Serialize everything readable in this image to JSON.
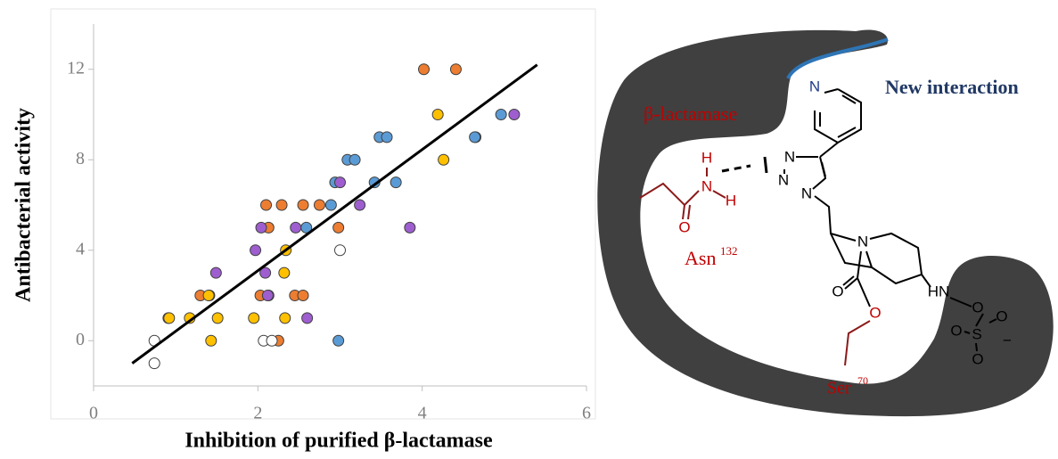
{
  "chart_data": {
    "type": "scatter",
    "xlabel": "Inhibition of purified β-lactamase",
    "ylabel": "Antibacterial activity",
    "xlim": [
      0,
      6
    ],
    "ylim": [
      -2,
      14
    ],
    "xticks": [
      0,
      2,
      4,
      6
    ],
    "yticks": [
      0,
      4,
      8,
      12
    ],
    "series": [
      {
        "color": "#ed7d31",
        "x": [
          4.02,
          4.41,
          2.1,
          2.29,
          2.55,
          2.75,
          2.13,
          2.98,
          1.3,
          1.41,
          2.03,
          2.45,
          2.55,
          0.91,
          2.25
        ],
        "values": [
          12,
          12,
          6,
          6,
          6,
          6,
          5,
          5,
          2,
          2,
          2,
          2,
          2,
          1,
          0
        ]
      },
      {
        "color": "#ffc000",
        "x": [
          4.19,
          4.26,
          2.34,
          2.32,
          1.4,
          2.13,
          0.92,
          1.17,
          1.51,
          1.95,
          2.33,
          1.43
        ],
        "values": [
          10,
          8,
          4,
          3,
          2,
          2,
          1,
          1,
          1,
          1,
          1,
          0
        ]
      },
      {
        "color": "#5b9bd5",
        "x": [
          4.65,
          4.96,
          4.64,
          3.48,
          3.57,
          3.09,
          3.18,
          3.42,
          3.68,
          2.94,
          2.89,
          2.59,
          2.98
        ],
        "values": [
          9,
          10,
          9,
          9,
          9,
          8,
          8,
          7,
          7,
          7,
          6,
          5,
          0
        ]
      },
      {
        "color": "#9e5ecf",
        "x": [
          5.12,
          3.0,
          3.24,
          3.85,
          2.04,
          2.46,
          1.97,
          2.09,
          1.49,
          2.12,
          2.6
        ],
        "values": [
          10,
          7,
          6,
          5,
          5,
          5,
          4,
          3,
          3,
          2,
          1
        ]
      },
      {
        "color": "#ffffff",
        "x": [
          0.74,
          0.74,
          2.07,
          2.17,
          3.0
        ],
        "values": [
          0,
          -1,
          0,
          0,
          4
        ]
      }
    ],
    "trendline": {
      "color": "#000000",
      "x": [
        0.47,
        5.4
      ],
      "y": [
        -1,
        12.2
      ]
    }
  },
  "diagram": {
    "enzyme": "β-lactamase",
    "interaction": "New interaction",
    "asn": "Asn",
    "asn_number": "132",
    "ser": "Ser",
    "ser_number": "70",
    "atoms": [
      "N",
      "N",
      "N",
      "N",
      "H",
      "N",
      "H",
      "O",
      "N",
      "O",
      "O",
      "HN",
      "O",
      "O",
      "S",
      "O",
      "O",
      "−"
    ]
  }
}
